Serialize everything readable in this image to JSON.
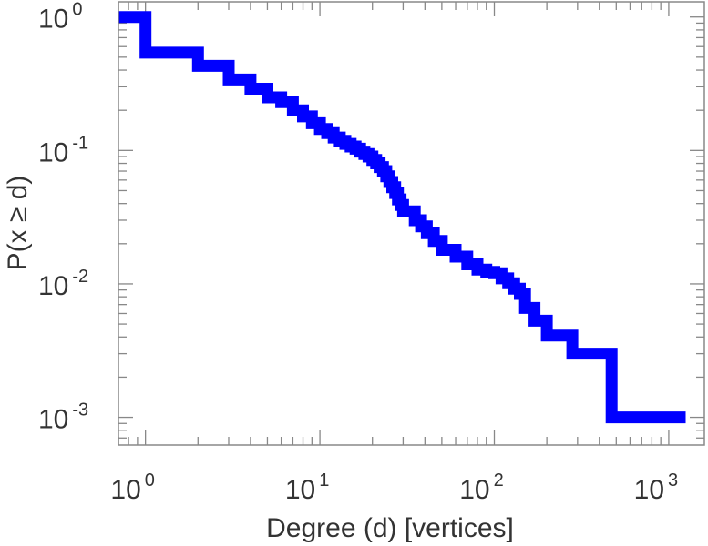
{
  "chart_data": {
    "type": "line",
    "title": "",
    "xlabel": "Degree (d) [vertices]",
    "ylabel": "P(x ≥ d)",
    "x_scale": "log",
    "y_scale": "log",
    "xlim": [
      0.7,
      1600
    ],
    "ylim": [
      0.00062,
      1.3
    ],
    "grid": false,
    "legend": "none",
    "x_ticks": [
      {
        "base": "10",
        "exp": "0",
        "value": 1
      },
      {
        "base": "10",
        "exp": "1",
        "value": 10
      },
      {
        "base": "10",
        "exp": "2",
        "value": 100
      },
      {
        "base": "10",
        "exp": "3",
        "value": 1000
      }
    ],
    "y_ticks": [
      {
        "base": "10",
        "exp": "0",
        "value": 1
      },
      {
        "base": "10",
        "exp": "-1",
        "value": 0.1
      },
      {
        "base": "10",
        "exp": "-2",
        "value": 0.01
      },
      {
        "base": "10",
        "exp": "-3",
        "value": 0.001
      }
    ],
    "series": [
      {
        "color": "#0000ff",
        "step": "post",
        "x": [
          0.7,
          1,
          2,
          3,
          4,
          5,
          6,
          7,
          8,
          9,
          10,
          11,
          12,
          13,
          14,
          15,
          16,
          17,
          18,
          19,
          20,
          21,
          22,
          23,
          24,
          25,
          26,
          27,
          28,
          29,
          30,
          35,
          38,
          41,
          45,
          50,
          60,
          70,
          80,
          90,
          100,
          110,
          120,
          130,
          140,
          150,
          170,
          200,
          280,
          470,
          1250
        ],
        "y": [
          1,
          0.54,
          0.43,
          0.34,
          0.29,
          0.25,
          0.23,
          0.2,
          0.18,
          0.16,
          0.145,
          0.135,
          0.125,
          0.118,
          0.112,
          0.107,
          0.103,
          0.098,
          0.094,
          0.09,
          0.085,
          0.08,
          0.075,
          0.07,
          0.064,
          0.058,
          0.053,
          0.048,
          0.043,
          0.039,
          0.035,
          0.03,
          0.027,
          0.024,
          0.021,
          0.018,
          0.016,
          0.014,
          0.0128,
          0.0123,
          0.012,
          0.011,
          0.0101,
          0.0092,
          0.0084,
          0.0066,
          0.0053,
          0.0041,
          0.003,
          0.001,
          0.001
        ]
      }
    ]
  }
}
